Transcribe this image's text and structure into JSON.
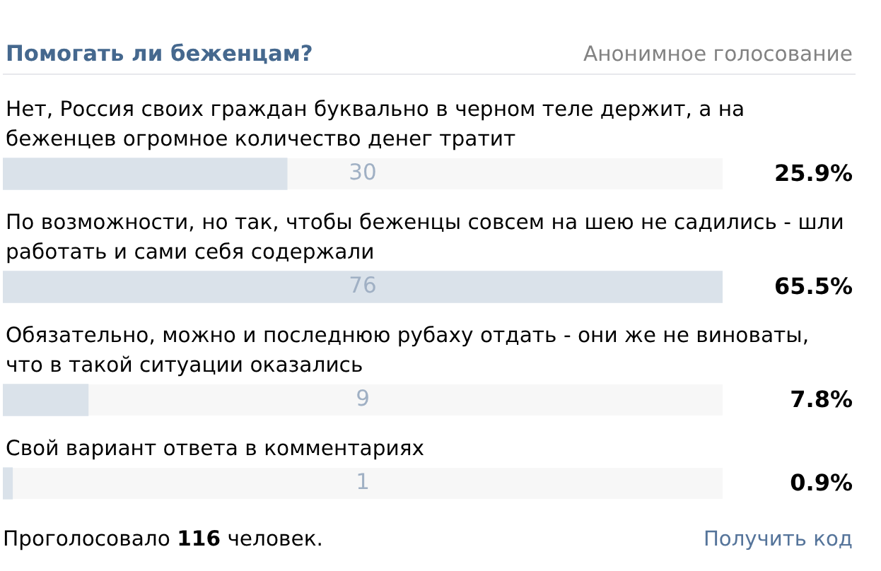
{
  "chart_data": {
    "type": "bar",
    "orientation": "horizontal",
    "title": "Помогать ли беженцам?",
    "subtitle": "Анонимное голосование",
    "categories": [
      "Нет, Россия своих граждан буквально в черном теле держит, а на беженцев огромное количество денег тратит",
      "По возможности, но так, чтобы беженцы совсем на шею не садились - шли работать и сами себя содержали",
      "Обязательно, можно и последнюю рубаху отдать - они же не виноваты, что в такой ситуации оказались",
      "Свой вариант ответа в комментариях"
    ],
    "values": [
      30,
      76,
      9,
      1
    ],
    "color": "#dae2ea",
    "xlim": [
      0,
      76
    ],
    "data_labels": true,
    "tick_labels": "y",
    "annotations": [
      "25.9%",
      "65.5%",
      "7.8%",
      "0.9%",
      "Проголосовало 116 человек.",
      "Получить код"
    ]
  }
}
